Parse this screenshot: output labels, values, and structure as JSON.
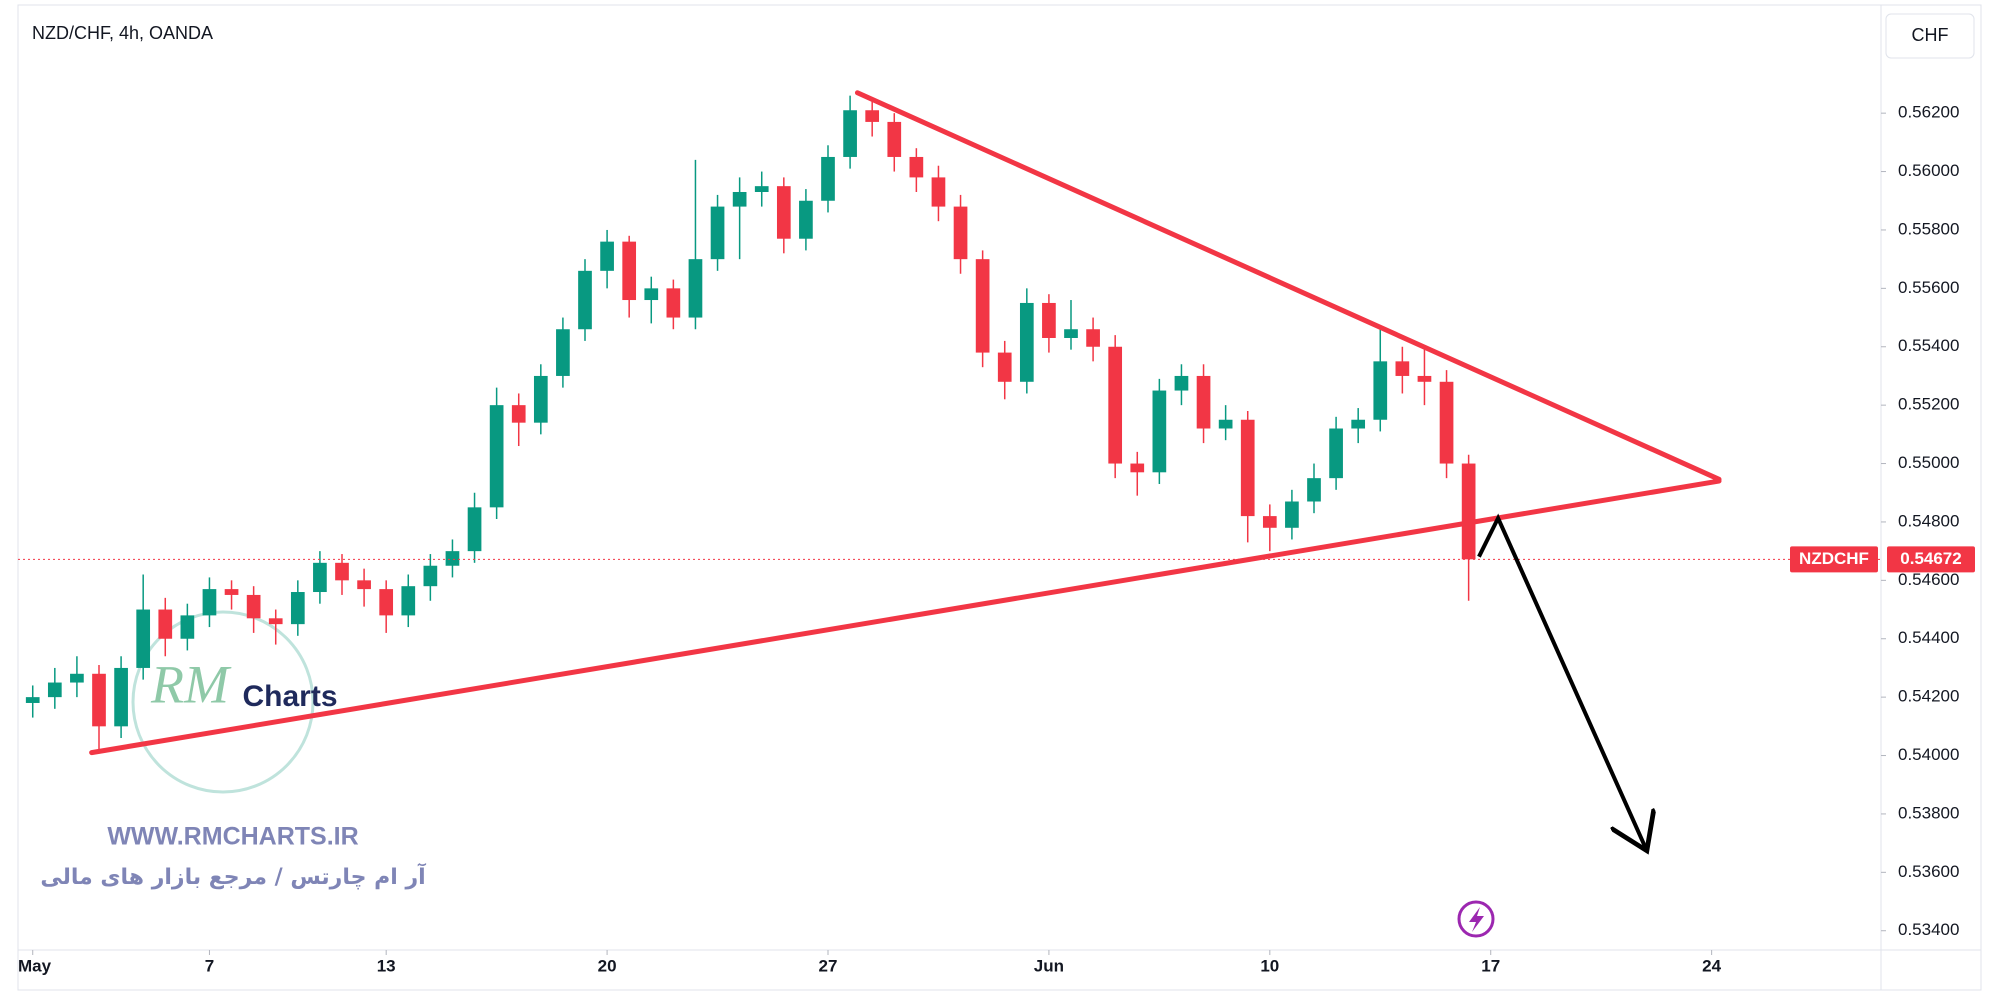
{
  "header": {
    "title": "NZD/CHF, 4h, OANDA",
    "currency_button": "CHF"
  },
  "chart_data": {
    "type": "candlestick",
    "x": [
      0,
      3,
      6,
      9,
      12,
      15,
      18,
      21,
      24,
      27,
      30,
      33,
      36,
      39,
      42,
      45,
      48,
      51,
      54,
      57,
      60,
      63,
      66,
      69,
      72,
      75,
      78,
      81,
      84,
      87,
      90,
      93,
      96,
      99,
      102,
      105,
      108,
      111,
      114,
      117,
      120,
      123,
      126,
      129,
      132,
      135,
      138,
      141,
      144,
      147,
      150,
      153,
      156,
      159,
      162,
      165,
      168,
      171,
      174,
      177,
      180,
      183,
      186,
      189,
      192,
      195
    ],
    "open": [
      0.5418,
      0.542,
      0.5425,
      0.5428,
      0.541,
      0.543,
      0.545,
      0.544,
      0.5448,
      0.5457,
      0.5455,
      0.5447,
      0.5445,
      0.5456,
      0.5466,
      0.546,
      0.5457,
      0.5448,
      0.5458,
      0.5465,
      0.547,
      0.5485,
      0.552,
      0.5514,
      0.553,
      0.5546,
      0.5566,
      0.5576,
      0.5556,
      0.556,
      0.555,
      0.557,
      0.5588,
      0.5593,
      0.5595,
      0.5577,
      0.559,
      0.5605,
      0.5621,
      0.5617,
      0.5605,
      0.5598,
      0.5588,
      0.557,
      0.5538,
      0.5528,
      0.5555,
      0.5543,
      0.5546,
      0.554,
      0.55,
      0.5497,
      0.5525,
      0.553,
      0.5512,
      0.5515,
      0.5482,
      0.5478,
      0.5487,
      0.5495,
      0.5512,
      0.5515,
      0.5535,
      0.553,
      0.5528,
      0.55
    ],
    "high": [
      0.5424,
      0.543,
      0.5434,
      0.5431,
      0.5434,
      0.5462,
      0.5454,
      0.5452,
      0.5461,
      0.546,
      0.5458,
      0.545,
      0.546,
      0.547,
      0.5469,
      0.5464,
      0.546,
      0.5462,
      0.5469,
      0.5474,
      0.549,
      0.5526,
      0.5524,
      0.5534,
      0.555,
      0.557,
      0.558,
      0.5578,
      0.5564,
      0.5563,
      0.5604,
      0.5592,
      0.5598,
      0.56,
      0.5598,
      0.5594,
      0.5609,
      0.5626,
      0.5624,
      0.562,
      0.5608,
      0.5602,
      0.5592,
      0.5573,
      0.5542,
      0.556,
      0.5558,
      0.5556,
      0.555,
      0.5544,
      0.5504,
      0.5529,
      0.5534,
      0.5534,
      0.552,
      0.5518,
      0.5486,
      0.5491,
      0.55,
      0.5516,
      0.5519,
      0.5547,
      0.554,
      0.554,
      0.5532,
      0.5503
    ],
    "low": [
      0.5413,
      0.5416,
      0.542,
      0.5401,
      0.5406,
      0.5426,
      0.5434,
      0.5436,
      0.5444,
      0.545,
      0.5442,
      0.5438,
      0.5441,
      0.5452,
      0.5455,
      0.5451,
      0.5442,
      0.5444,
      0.5453,
      0.5461,
      0.5466,
      0.5481,
      0.5506,
      0.551,
      0.5526,
      0.5542,
      0.556,
      0.555,
      0.5548,
      0.5546,
      0.5546,
      0.5566,
      0.557,
      0.5588,
      0.5572,
      0.5573,
      0.5586,
      0.5601,
      0.5612,
      0.56,
      0.5593,
      0.5583,
      0.5565,
      0.5533,
      0.5522,
      0.5524,
      0.5538,
      0.5539,
      0.5535,
      0.5495,
      0.5489,
      0.5493,
      0.552,
      0.5507,
      0.5508,
      0.5473,
      0.547,
      0.5474,
      0.5483,
      0.5491,
      0.5507,
      0.5511,
      0.5524,
      0.552,
      0.5495,
      0.5453
    ],
    "close": [
      0.542,
      0.5425,
      0.5428,
      0.541,
      0.543,
      0.545,
      0.544,
      0.5448,
      0.5457,
      0.5455,
      0.5447,
      0.5445,
      0.5456,
      0.5466,
      0.546,
      0.5457,
      0.5448,
      0.5458,
      0.5465,
      0.547,
      0.5485,
      0.552,
      0.5514,
      0.553,
      0.5546,
      0.5566,
      0.5576,
      0.5556,
      0.556,
      0.555,
      0.557,
      0.5588,
      0.5593,
      0.5595,
      0.5577,
      0.559,
      0.5605,
      0.5621,
      0.5617,
      0.5605,
      0.5598,
      0.5588,
      0.557,
      0.5538,
      0.5528,
      0.5555,
      0.5543,
      0.5546,
      0.554,
      0.55,
      0.5497,
      0.5525,
      0.553,
      0.5512,
      0.5515,
      0.5482,
      0.5478,
      0.5487,
      0.5495,
      0.5512,
      0.5515,
      0.5535,
      0.553,
      0.5528,
      0.55,
      0.54672
    ],
    "up_color": "#089981",
    "down_color": "#f23645",
    "xlim": [
      -2,
      251
    ],
    "xticks": [
      {
        "value": 0,
        "label": "May"
      },
      {
        "value": 24,
        "label": "7"
      },
      {
        "value": 48,
        "label": "13"
      },
      {
        "value": 78,
        "label": "20"
      },
      {
        "value": 108,
        "label": "27"
      },
      {
        "value": 138,
        "label": "Jun"
      },
      {
        "value": 168,
        "label": "10"
      },
      {
        "value": 198,
        "label": "17"
      },
      {
        "value": 228,
        "label": "24"
      }
    ],
    "ylim": [
      0.53334,
      0.56567
    ],
    "yticks": [
      {
        "value": 0.562,
        "label": "0.56200"
      },
      {
        "value": 0.56,
        "label": "0.56000"
      },
      {
        "value": 0.558,
        "label": "0.55800"
      },
      {
        "value": 0.556,
        "label": "0.55600"
      },
      {
        "value": 0.554,
        "label": "0.55400"
      },
      {
        "value": 0.552,
        "label": "0.55200"
      },
      {
        "value": 0.55,
        "label": "0.55000"
      },
      {
        "value": 0.548,
        "label": "0.54800"
      },
      {
        "value": 0.546,
        "label": "0.54600"
      },
      {
        "value": 0.544,
        "label": "0.54400"
      },
      {
        "value": 0.542,
        "label": "0.54200"
      },
      {
        "value": 0.54,
        "label": "0.54000"
      },
      {
        "value": 0.538,
        "label": "0.53800"
      },
      {
        "value": 0.536,
        "label": "0.53600"
      },
      {
        "value": 0.534,
        "label": "0.53400"
      }
    ],
    "last_price": {
      "symbol": "NZDCHF",
      "value": 0.54672,
      "color": "#f23645"
    },
    "trendlines": [
      {
        "color": "#f23645",
        "x": [
          112,
          229
        ],
        "y": [
          0.5627,
          0.54946
        ]
      },
      {
        "color": "#f23645",
        "x": [
          8,
          229
        ],
        "y": [
          0.5401,
          0.5494
        ]
      }
    ],
    "arrow": {
      "color": "#000000",
      "x": [
        196.4,
        199,
        219.2
      ],
      "y": [
        0.54681,
        0.54813,
        0.53674
      ]
    }
  },
  "watermark": {
    "logo_letters": "RM",
    "logo_text": "Charts",
    "website": "WWW.RMCHARTS.IR",
    "tagline": "آر ام چارتس / مرجع بازار های مالی"
  }
}
